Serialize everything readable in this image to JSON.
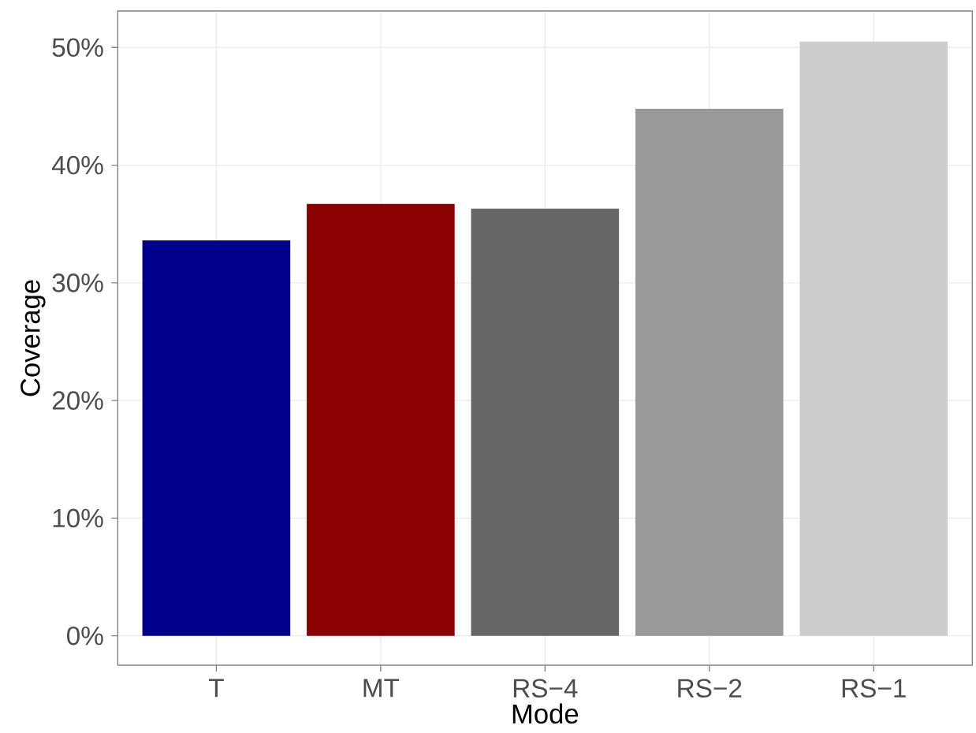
{
  "chart_data": {
    "type": "bar",
    "xlabel": "Mode",
    "ylabel": "Coverage",
    "categories": [
      "T",
      "MT",
      "RS−4",
      "RS−2",
      "RS−1"
    ],
    "values": [
      33.6,
      36.7,
      36.3,
      44.8,
      50.5
    ],
    "colors": [
      "#00008b",
      "#8b0000",
      "#666666",
      "#999999",
      "#cccccc"
    ],
    "ylim": [
      -2.5,
      53.1
    ],
    "yticks": [
      {
        "value": 0,
        "label": "0%"
      },
      {
        "value": 10,
        "label": "10%"
      },
      {
        "value": 20,
        "label": "20%"
      },
      {
        "value": 30,
        "label": "30%"
      },
      {
        "value": 40,
        "label": "40%"
      },
      {
        "value": 50,
        "label": "50%"
      }
    ],
    "grid": true
  }
}
